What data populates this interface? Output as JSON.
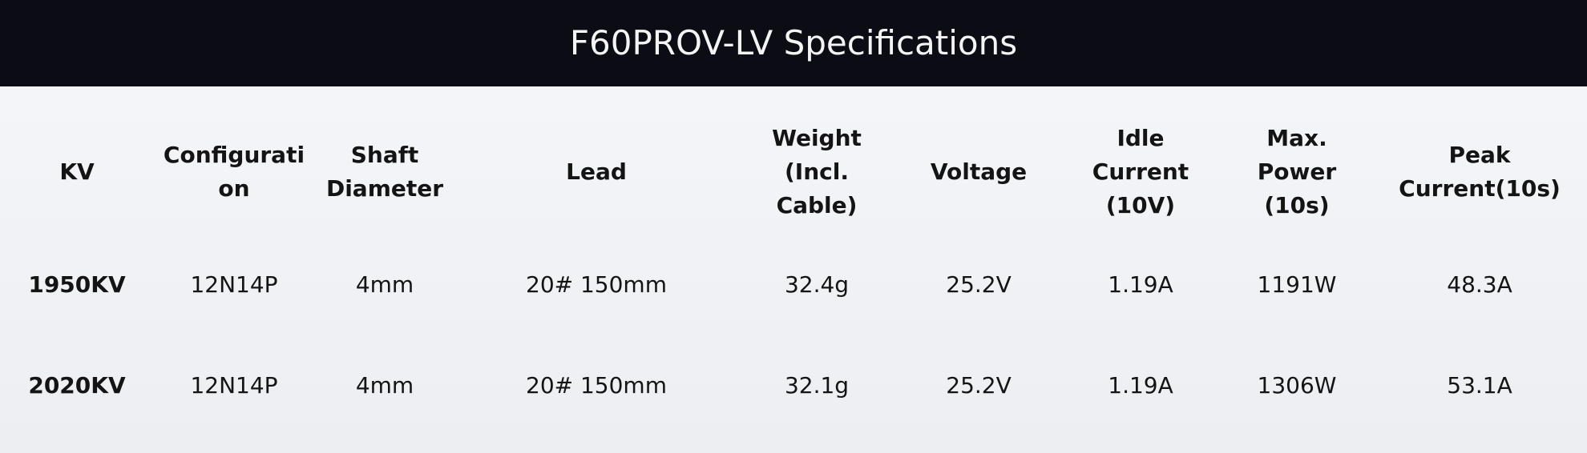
{
  "header": {
    "title": "F60PROV-LV Specifications"
  },
  "table": {
    "columns": [
      [
        "KV"
      ],
      [
        "Configurati",
        "on"
      ],
      [
        "Shaft",
        "Diameter"
      ],
      [
        "Lead"
      ],
      [
        "Weight",
        "(Incl.",
        "Cable)"
      ],
      [
        "Voltage"
      ],
      [
        "Idle",
        "Current",
        "(10V)"
      ],
      [
        "Max.",
        "Power",
        "(10s)"
      ],
      [
        "Peak",
        "Current(10s)"
      ]
    ],
    "rows": [
      [
        "1950KV",
        "12N14P",
        "4mm",
        "20# 150mm",
        "32.4g",
        "25.2V",
        "1.19A",
        "1191W",
        "48.3A"
      ],
      [
        "2020KV",
        "12N14P",
        "4mm",
        "20# 150mm",
        "32.1g",
        "25.2V",
        "1.19A",
        "1306W",
        "53.1A"
      ]
    ]
  }
}
